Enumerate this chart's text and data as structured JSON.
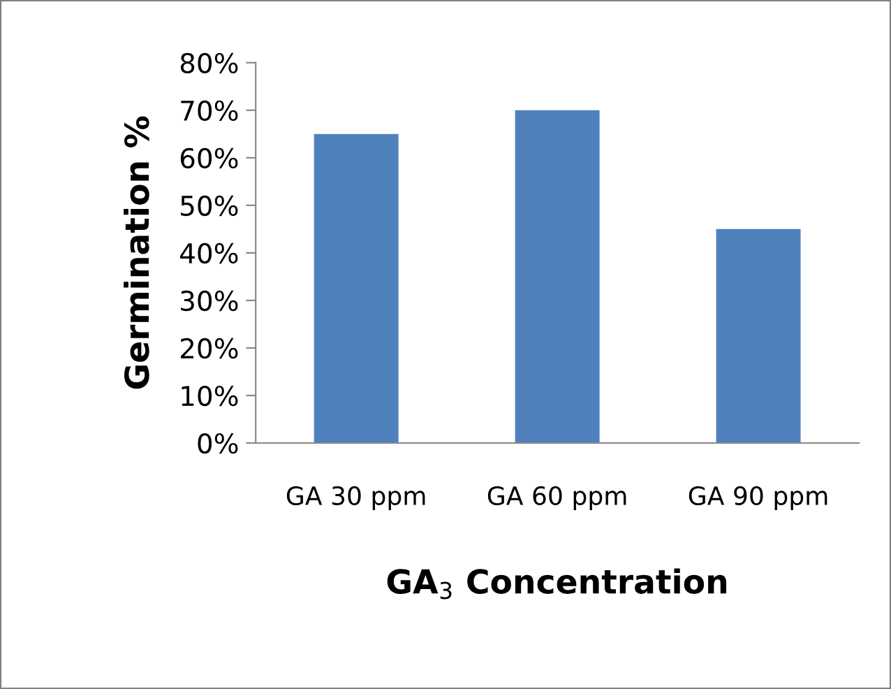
{
  "chart_data": {
    "type": "bar",
    "ylabel": "Germination %",
    "xlabel": "GA$_{3}$ Concentration",
    "categories": [
      "GA 30 ppm",
      "GA 60 ppm",
      "GA 90 ppm"
    ],
    "values": [
      65,
      70,
      45
    ],
    "color": "#4f81bd",
    "ylim": [
      0,
      80
    ],
    "yticks": [
      {
        "value": 0,
        "label": "0%"
      },
      {
        "value": 10,
        "label": "10%"
      },
      {
        "value": 20,
        "label": "20%"
      },
      {
        "value": 30,
        "label": "30%"
      },
      {
        "value": 40,
        "label": "40%"
      },
      {
        "value": 50,
        "label": "50%"
      },
      {
        "value": 60,
        "label": "60%"
      },
      {
        "value": 70,
        "label": "70%"
      },
      {
        "value": 80,
        "label": "80%"
      }
    ],
    "grid": false,
    "legend": false
  }
}
